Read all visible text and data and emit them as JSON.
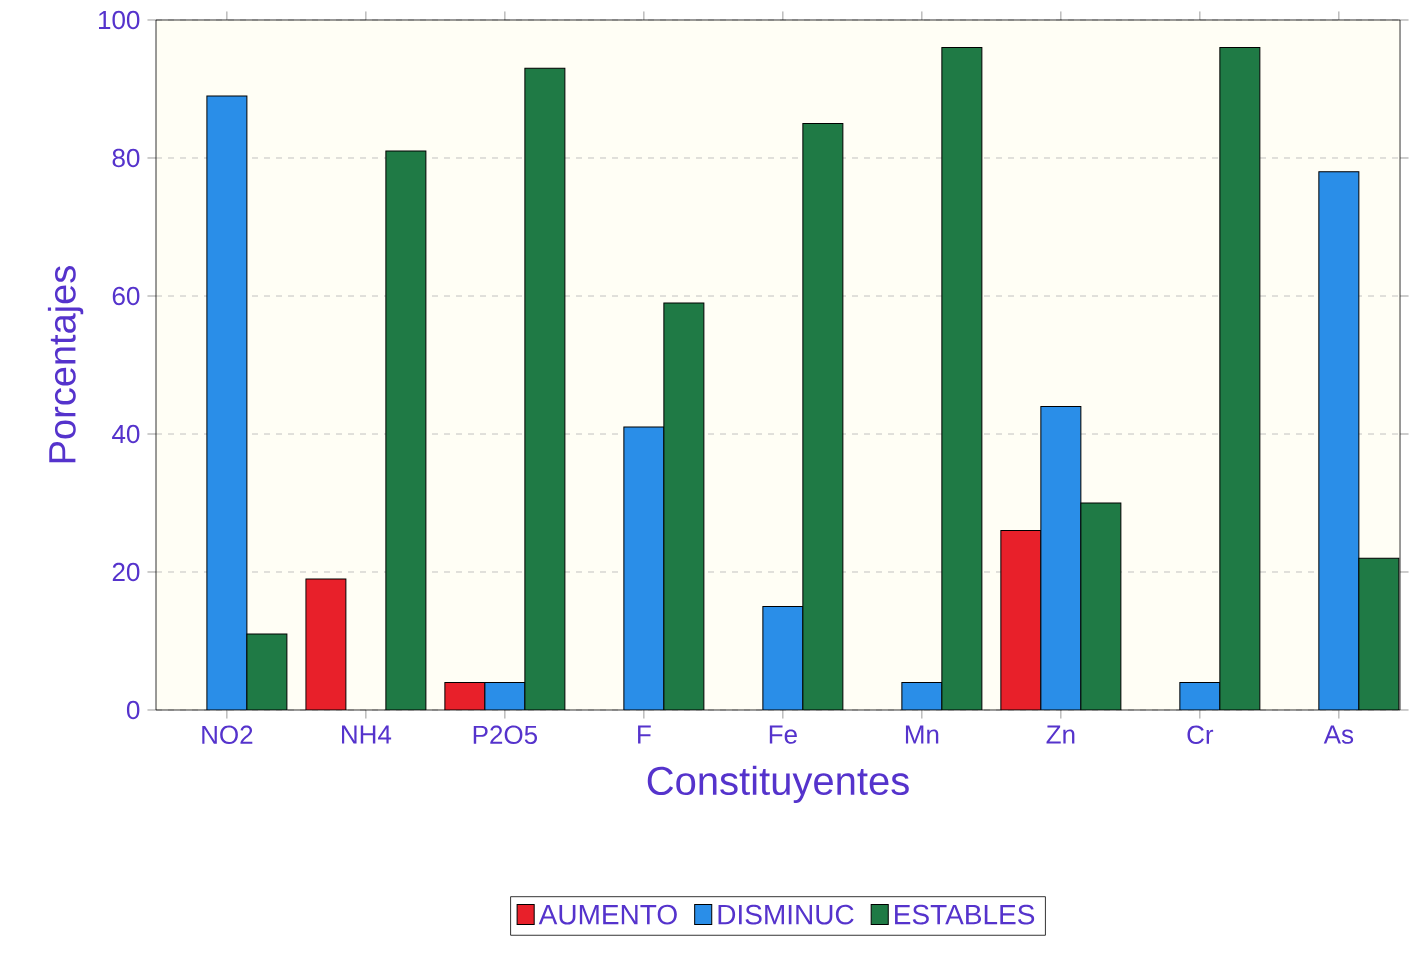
{
  "chart_data": {
    "type": "bar",
    "xlabel": "Constituyentes",
    "ylabel": "Porcentajes",
    "categories": [
      "NO2",
      "NH4",
      "P2O5",
      "F",
      "Fe",
      "Mn",
      "Zn",
      "Cr",
      "As"
    ],
    "series": [
      {
        "name": "AUMENTO",
        "color": "#e8202a",
        "values": [
          null,
          19,
          4,
          null,
          null,
          null,
          26,
          null,
          null
        ]
      },
      {
        "name": "DISMINUC",
        "color": "#2a8ee8",
        "values": [
          89,
          null,
          4,
          41,
          15,
          4,
          44,
          4,
          78
        ]
      },
      {
        "name": "ESTABLES",
        "color": "#1f7a45",
        "values": [
          11,
          81,
          93,
          59,
          85,
          96,
          30,
          96,
          22
        ]
      }
    ],
    "ylim": [
      0,
      100
    ],
    "yticks": [
      0,
      20,
      40,
      60,
      80,
      100
    ],
    "grid": "y",
    "legend": "bottom"
  }
}
